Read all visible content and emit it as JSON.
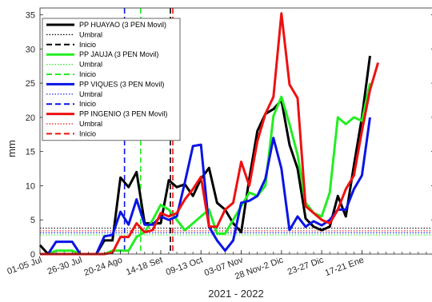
{
  "chart_data": {
    "type": "line",
    "xlabel": "2021 - 2022",
    "ylabel": "mm",
    "ylim": [
      0,
      36
    ],
    "xlim": [
      0,
      49
    ],
    "yticks": [
      0,
      5,
      10,
      15,
      20,
      25,
      30,
      35
    ],
    "xticks": [
      {
        "pos": 0,
        "label": "01-05 Jul"
      },
      {
        "pos": 5,
        "label": "26-30 Jul"
      },
      {
        "pos": 10,
        "label": "20-24 Ago"
      },
      {
        "pos": 15,
        "label": "14-18 Set"
      },
      {
        "pos": 20,
        "label": "09-13 Oct"
      },
      {
        "pos": 25,
        "label": "03-07 Nov"
      },
      {
        "pos": 30,
        "label": "28 Nov-2 Dic"
      },
      {
        "pos": 35,
        "label": "23-27 Dic"
      },
      {
        "pos": 40,
        "label": "17-21 Ene"
      }
    ],
    "grid": false,
    "legend_position": "top-left",
    "series": [
      {
        "name": "PP HUAYAO (3 PEN Movil)",
        "color": "#000000",
        "style": "solid",
        "values": [
          1.3,
          0,
          0,
          0,
          0,
          0,
          0,
          0,
          2,
          2,
          11.2,
          9.8,
          12,
          4.5,
          4.5,
          4.5,
          10.8,
          9.8,
          10.2,
          8.5,
          11,
          12.6,
          7.5,
          6.5,
          4.5,
          3.2,
          11,
          18,
          20.5,
          21.2,
          22.5,
          16,
          12.5,
          5.2,
          4,
          3.5,
          4,
          8.5,
          5.5,
          13,
          20,
          29
        ]
      },
      {
        "name": "Umbral",
        "color": "#000000",
        "style": "dotted",
        "constant": 3.8
      },
      {
        "name": "Inicio",
        "color": "#000000",
        "style": "dashed",
        "vline": 16.2
      },
      {
        "name": "PP JAUJA (3 PEN Movil)",
        "color": "#22ee22",
        "style": "solid",
        "values": [
          0,
          0,
          0.5,
          0.5,
          0.5,
          0,
          0,
          0,
          0,
          0.5,
          0.5,
          0.5,
          2.5,
          3.2,
          5,
          7.2,
          6.5,
          5,
          3.5,
          4.5,
          5.5,
          6.5,
          3,
          3,
          5,
          7,
          9,
          8.5,
          10,
          20.2,
          23,
          19,
          14.5,
          7.5,
          6,
          5.5,
          9,
          20,
          19,
          20,
          19.5,
          25
        ]
      },
      {
        "name": "Umbral",
        "color": "#22ee22",
        "style": "dotted",
        "constant": 2.8
      },
      {
        "name": "Inicio",
        "color": "#22ee22",
        "style": "dashed",
        "vline": 12.5
      },
      {
        "name": "PP VIQUES (3 PEN Movil)",
        "color": "#0a14e6",
        "style": "solid",
        "values": [
          0,
          0,
          1.8,
          1.8,
          1.8,
          0,
          0,
          0,
          2.6,
          2.8,
          6.2,
          4.3,
          8,
          4.3,
          4.3,
          5.5,
          5,
          5.5,
          10.5,
          15.8,
          16,
          4,
          2,
          0.5,
          2,
          7.5,
          7.8,
          8.5,
          11,
          17,
          12.5,
          3.5,
          5.5,
          4,
          4.8,
          4.2,
          5,
          6.5,
          6.5,
          9.5,
          11.5,
          20
        ]
      },
      {
        "name": "Umbral",
        "color": "#0a14e6",
        "style": "dotted",
        "constant": 3.1
      },
      {
        "name": "Inicio",
        "color": "#0a14e6",
        "style": "dashed",
        "vline": 10.5
      },
      {
        "name": "PP INGENIO (3 PEN Movil)",
        "color": "#ee1111",
        "style": "solid",
        "values": [
          0,
          0,
          0,
          0,
          0,
          0,
          0,
          0,
          0,
          0.2,
          2.5,
          2.5,
          4.5,
          3.2,
          3.5,
          6,
          5.5,
          6,
          8,
          9.5,
          11.3,
          4,
          4,
          6.5,
          7.5,
          13.5,
          10,
          16.5,
          20.5,
          23,
          35.2,
          24.8,
          22.8,
          7,
          6,
          5,
          4.5,
          6.5,
          9.5,
          11.5,
          18,
          24,
          28
        ]
      },
      {
        "name": "Umbral",
        "color": "#ee1111",
        "style": "dotted",
        "constant": 3.4
      },
      {
        "name": "Inicio",
        "color": "#ee1111",
        "style": "dashed",
        "vline": 16.5
      }
    ]
  }
}
